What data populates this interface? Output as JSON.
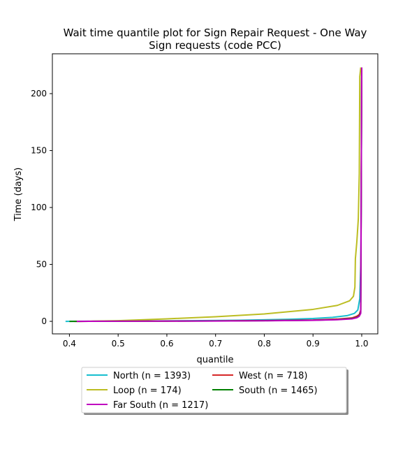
{
  "chart_data": {
    "type": "line",
    "title_line1": "Wait time quantile plot for Sign Repair Request - One Way",
    "title_line2": "Sign  requests (code PCC)",
    "xlabel": "quantile",
    "ylabel": "Time (days)",
    "xlim": [
      0.365,
      1.033
    ],
    "ylim": [
      -11,
      235
    ],
    "xticks": [
      0.4,
      0.5,
      0.6,
      0.7,
      0.8,
      0.9,
      1.0
    ],
    "xtick_labels": [
      "0.4",
      "0.5",
      "0.6",
      "0.7",
      "0.8",
      "0.9",
      "1.0"
    ],
    "yticks": [
      0,
      50,
      100,
      150,
      200
    ],
    "ytick_labels": [
      "0",
      "50",
      "100",
      "150",
      "200"
    ],
    "grid": false,
    "legend_placement": "bottom-center",
    "series": [
      {
        "name": "North (n = 1393)",
        "color": "#17becf",
        "x": [
          0.392,
          0.45,
          0.55,
          0.65,
          0.75,
          0.85,
          0.9,
          0.94,
          0.97,
          0.985,
          0.992,
          0.996,
          0.998,
          0.999,
          1.0
        ],
        "y": [
          0,
          0.1,
          0.3,
          0.6,
          1.0,
          1.8,
          2.5,
          3.5,
          5.0,
          7.0,
          10,
          20,
          50,
          100,
          223
        ]
      },
      {
        "name": "West (n = 718)",
        "color": "#d62728",
        "x": [
          0.41,
          0.5,
          0.6,
          0.7,
          0.8,
          0.9,
          0.95,
          0.98,
          0.99,
          0.995,
          0.998,
          1.0
        ],
        "y": [
          0,
          0.1,
          0.2,
          0.4,
          0.7,
          1.2,
          2.0,
          3.0,
          4.5,
          6.0,
          10,
          223
        ]
      },
      {
        "name": "Loop (n = 174)",
        "color": "#bcbd22",
        "x": [
          0.42,
          0.5,
          0.6,
          0.7,
          0.8,
          0.9,
          0.95,
          0.975,
          0.983,
          0.986,
          0.987,
          0.99,
          0.993,
          0.995,
          0.996,
          0.998
        ],
        "y": [
          0,
          0.6,
          2.2,
          4.0,
          6.5,
          10.5,
          14.0,
          18.0,
          22.0,
          30.0,
          55.0,
          70.0,
          90.0,
          130.0,
          215.0,
          223.0
        ]
      },
      {
        "name": "South (n = 1465)",
        "color": "#008000",
        "x": [
          0.4,
          0.5,
          0.6,
          0.7,
          0.8,
          0.9,
          0.95,
          0.98,
          0.99,
          0.995,
          0.998,
          1.0
        ],
        "y": [
          0,
          0.1,
          0.2,
          0.35,
          0.6,
          1.0,
          1.6,
          2.5,
          3.5,
          5.0,
          8.0,
          223
        ]
      },
      {
        "name": "Far South (n = 1217)",
        "color": "#bf00bf",
        "x": [
          0.415,
          0.5,
          0.6,
          0.7,
          0.8,
          0.9,
          0.95,
          0.98,
          0.99,
          0.995,
          0.998,
          1.0
        ],
        "y": [
          0,
          0.1,
          0.2,
          0.3,
          0.5,
          0.9,
          1.4,
          2.2,
          3.2,
          4.5,
          7.0,
          223
        ]
      }
    ]
  }
}
